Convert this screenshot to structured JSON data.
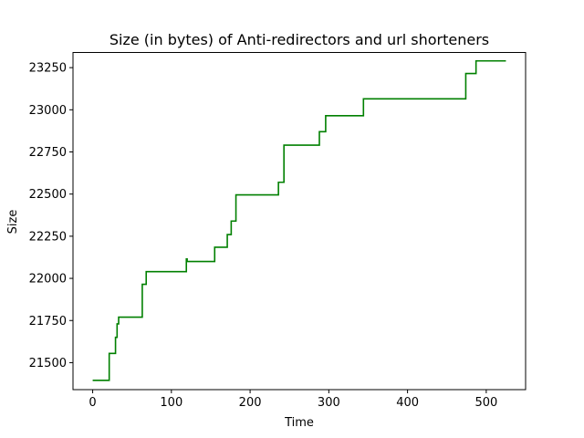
{
  "chart_data": {
    "type": "line",
    "title": "Size (in bytes) of Anti-redirectors and url shorteners",
    "xlabel": "Time",
    "ylabel": "Size",
    "xlim": [
      -25,
      550
    ],
    "ylim": [
      21340,
      23340
    ],
    "xticks": [
      0,
      100,
      200,
      300,
      400,
      500
    ],
    "yticks": [
      21500,
      21750,
      22000,
      22250,
      22500,
      22750,
      23000,
      23250
    ],
    "grid": false,
    "line_style": "step",
    "series": [
      {
        "color": "#008000",
        "x": [
          0,
          21,
          21,
          29,
          29,
          31,
          31,
          33,
          33,
          35,
          35,
          63,
          63,
          68,
          68,
          119,
          119,
          120,
          120,
          155,
          155,
          171,
          171,
          176,
          176,
          182,
          182,
          236,
          236,
          243,
          243,
          288,
          288,
          296,
          296,
          344,
          344,
          474,
          474,
          487,
          487,
          525
        ],
        "y": [
          21395,
          21395,
          21555,
          21555,
          21650,
          21650,
          21730,
          21730,
          21770,
          21770,
          21770,
          21770,
          21965,
          21965,
          22040,
          22040,
          22115,
          22115,
          22100,
          22100,
          22185,
          22185,
          22260,
          22260,
          22340,
          22340,
          22495,
          22495,
          22570,
          22570,
          22790,
          22790,
          22870,
          22870,
          22965,
          22965,
          23065,
          23065,
          23215,
          23215,
          23290,
          23290
        ]
      }
    ]
  }
}
